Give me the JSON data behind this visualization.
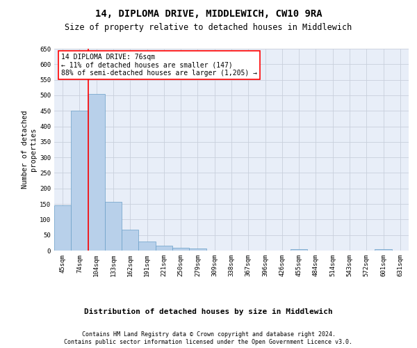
{
  "title": "14, DIPLOMA DRIVE, MIDDLEWICH, CW10 9RA",
  "subtitle": "Size of property relative to detached houses in Middlewich",
  "xlabel": "Distribution of detached houses by size in Middlewich",
  "ylabel": "Number of detached\nproperties",
  "categories": [
    "45sqm",
    "74sqm",
    "104sqm",
    "133sqm",
    "162sqm",
    "191sqm",
    "221sqm",
    "250sqm",
    "279sqm",
    "309sqm",
    "338sqm",
    "367sqm",
    "396sqm",
    "426sqm",
    "455sqm",
    "484sqm",
    "514sqm",
    "543sqm",
    "572sqm",
    "601sqm",
    "631sqm"
  ],
  "values": [
    145,
    450,
    505,
    158,
    67,
    30,
    15,
    10,
    7,
    0,
    0,
    0,
    0,
    0,
    5,
    0,
    0,
    0,
    0,
    5,
    0
  ],
  "bar_color": "#b8d0ea",
  "bar_edge_color": "#6a9fc8",
  "ylim": [
    0,
    650
  ],
  "yticks": [
    0,
    50,
    100,
    150,
    200,
    250,
    300,
    350,
    400,
    450,
    500,
    550,
    600,
    650
  ],
  "red_line_x": 1.5,
  "annotation_title": "14 DIPLOMA DRIVE: 76sqm",
  "annotation_line1": "← 11% of detached houses are smaller (147)",
  "annotation_line2": "88% of semi-detached houses are larger (1,205) →",
  "footer_line1": "Contains HM Land Registry data © Crown copyright and database right 2024.",
  "footer_line2": "Contains public sector information licensed under the Open Government Licence v3.0.",
  "title_fontsize": 10,
  "subtitle_fontsize": 8.5,
  "annotation_fontsize": 7,
  "ylabel_fontsize": 7.5,
  "xlabel_fontsize": 8,
  "tick_fontsize": 6.5,
  "footer_fontsize": 6
}
